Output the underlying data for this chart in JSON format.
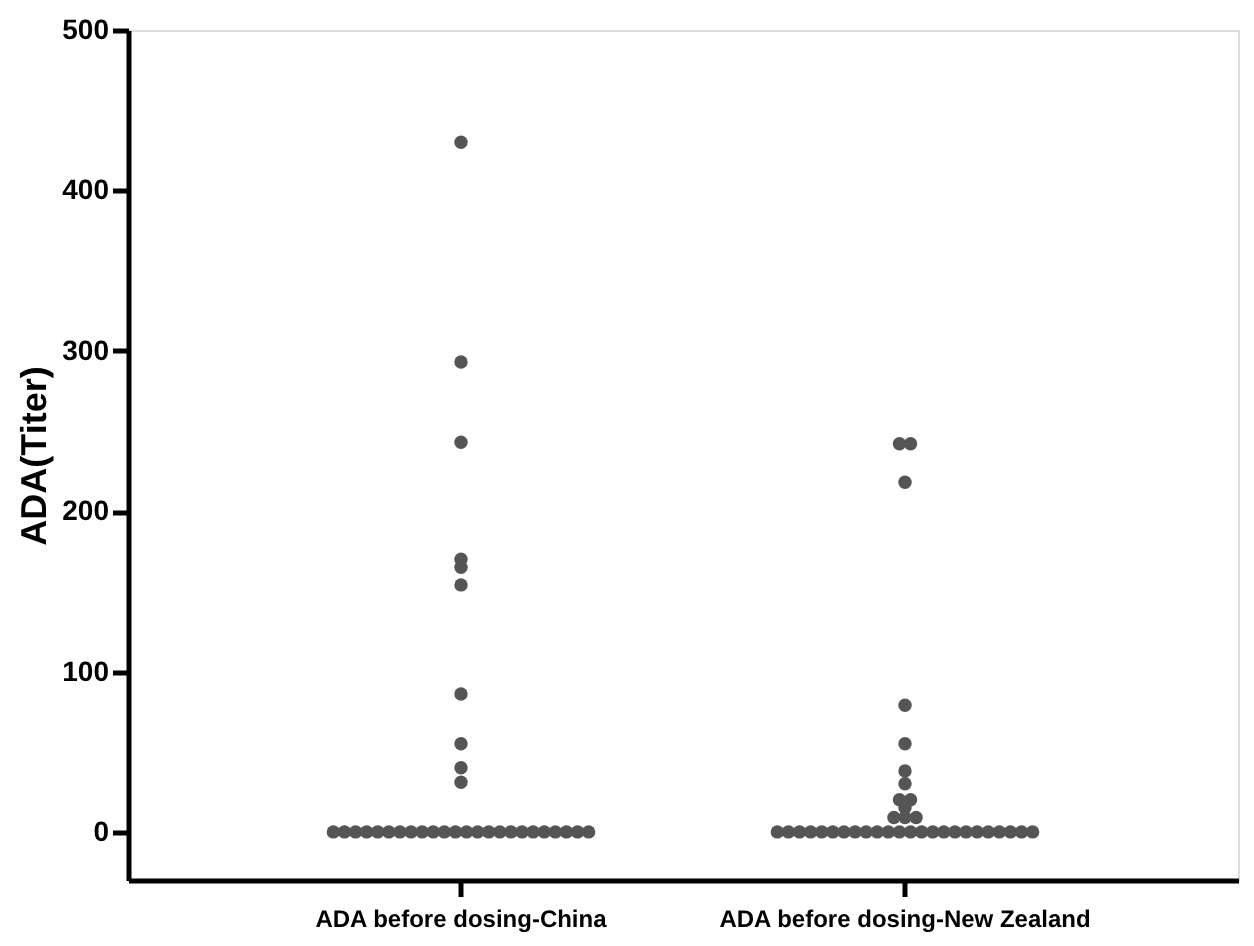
{
  "chart_data": {
    "type": "scatter",
    "ylabel": "ADA(Titer)",
    "categories": [
      "ADA before dosing-China",
      "ADA before dosing-New Zealand"
    ],
    "ylim": [
      -30,
      500
    ],
    "yticks": [
      0,
      100,
      200,
      300,
      400,
      500
    ],
    "grid": false,
    "marker": "circle",
    "series": [
      {
        "color": "#555555",
        "x": [
          "ADA before dosing-China",
          "ADA before dosing-China",
          "ADA before dosing-China",
          "ADA before dosing-China",
          "ADA before dosing-China",
          "ADA before dosing-China",
          "ADA before dosing-China",
          "ADA before dosing-China",
          "ADA before dosing-China",
          "ADA before dosing-China",
          "ADA before dosing-China",
          "ADA before dosing-China",
          "ADA before dosing-China",
          "ADA before dosing-China",
          "ADA before dosing-China",
          "ADA before dosing-China",
          "ADA before dosing-China",
          "ADA before dosing-China",
          "ADA before dosing-China",
          "ADA before dosing-China",
          "ADA before dosing-China",
          "ADA before dosing-China",
          "ADA before dosing-China",
          "ADA before dosing-China",
          "ADA before dosing-China",
          "ADA before dosing-China",
          "ADA before dosing-China",
          "ADA before dosing-China",
          "ADA before dosing-China",
          "ADA before dosing-China",
          "ADA before dosing-China",
          "ADA before dosing-China",
          "ADA before dosing-China",
          "ADA before dosing-China",
          "ADA before dosing-New Zealand",
          "ADA before dosing-New Zealand",
          "ADA before dosing-New Zealand",
          "ADA before dosing-New Zealand",
          "ADA before dosing-New Zealand",
          "ADA before dosing-New Zealand",
          "ADA before dosing-New Zealand",
          "ADA before dosing-New Zealand",
          "ADA before dosing-New Zealand",
          "ADA before dosing-New Zealand",
          "ADA before dosing-New Zealand",
          "ADA before dosing-New Zealand",
          "ADA before dosing-New Zealand",
          "ADA before dosing-New Zealand",
          "ADA before dosing-New Zealand",
          "ADA before dosing-New Zealand",
          "ADA before dosing-New Zealand",
          "ADA before dosing-New Zealand",
          "ADA before dosing-New Zealand",
          "ADA before dosing-New Zealand",
          "ADA before dosing-New Zealand",
          "ADA before dosing-New Zealand",
          "ADA before dosing-New Zealand",
          "ADA before dosing-New Zealand",
          "ADA before dosing-New Zealand",
          "ADA before dosing-New Zealand",
          "ADA before dosing-New Zealand",
          "ADA before dosing-New Zealand",
          "ADA before dosing-New Zealand",
          "ADA before dosing-New Zealand",
          "ADA before dosing-New Zealand",
          "ADA before dosing-New Zealand",
          "ADA before dosing-New Zealand",
          "ADA before dosing-New Zealand",
          "ADA before dosing-New Zealand",
          "ADA before dosing-New Zealand",
          "ADA before dosing-New Zealand"
        ],
        "values": [
          430,
          293,
          243,
          170,
          165,
          154,
          86,
          55,
          40,
          31,
          0,
          0,
          0,
          0,
          0,
          0,
          0,
          0,
          0,
          0,
          0,
          0,
          0,
          0,
          0,
          0,
          0,
          0,
          0,
          0,
          0,
          0,
          0,
          0,
          242,
          242,
          218,
          79,
          55,
          38,
          30,
          20,
          20,
          15,
          9,
          9,
          9,
          0,
          0,
          0,
          0,
          0,
          0,
          0,
          0,
          0,
          0,
          0,
          0,
          0,
          0,
          0,
          0,
          0,
          0,
          0,
          0,
          0,
          0,
          0,
          0
        ]
      }
    ]
  }
}
